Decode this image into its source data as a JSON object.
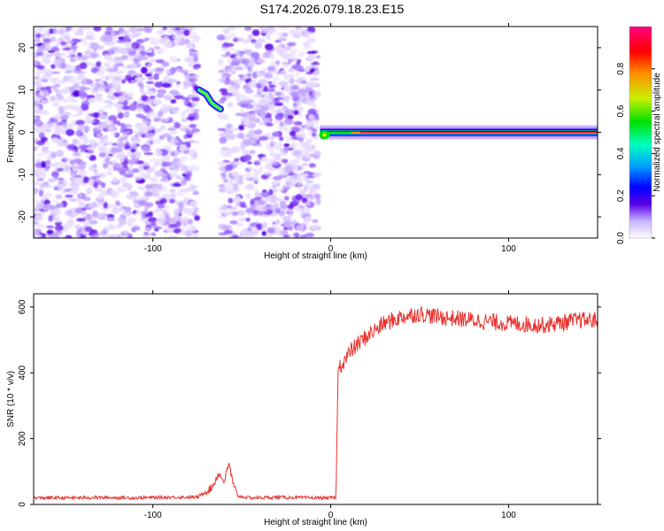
{
  "title": "S174.2026.079.18.23.E15",
  "chart_data": [
    {
      "type": "heatmap",
      "xlabel": "Height of straight line (km)",
      "ylabel": "Frequency (Hz)",
      "xlim": [
        -167,
        150
      ],
      "ylim": [
        -25,
        25
      ],
      "xticks": [
        -100,
        0,
        100
      ],
      "yticks": [
        -20,
        -10,
        0,
        10,
        20
      ],
      "colorbar": {
        "label": "Normalized spectral amplitude",
        "range": [
          0.0,
          1.0
        ],
        "ticks": [
          0.0,
          0.2,
          0.4,
          0.6,
          0.8
        ],
        "colors": [
          "#ffffff",
          "#a57bff",
          "#5a00e6",
          "#0000ff",
          "#00b4ff",
          "#00ffc0",
          "#00e000",
          "#c8f000",
          "#ff8c00",
          "#ff0000",
          "#ff0080"
        ]
      },
      "features": [
        {
          "name": "noise",
          "x_range": [
            -167,
            -7
          ],
          "y_range": [
            -25,
            25
          ],
          "amplitude": 0.1,
          "gap": [
            -75,
            -62
          ]
        },
        {
          "name": "blob",
          "points": [
            [
              -74,
              10
            ],
            [
              -70,
              9
            ],
            [
              -67,
              7
            ],
            [
              -64,
              6
            ],
            [
              -62,
              5.5
            ]
          ],
          "amplitude": 0.5
        },
        {
          "name": "ridge",
          "x_range": [
            -6,
            150
          ],
          "frequency": 0.0,
          "amplitude": 0.9
        }
      ]
    },
    {
      "type": "line",
      "xlabel": "Height of straight line (km)",
      "ylabel": "SNR (10 * v/v)",
      "xlim": [
        -167,
        150
      ],
      "ylim": [
        0,
        640
      ],
      "xticks": [
        -100,
        0,
        100
      ],
      "yticks": [
        0,
        200,
        400,
        600
      ],
      "color": "#e8312d",
      "x": [
        -167,
        -150,
        -130,
        -110,
        -90,
        -75,
        -67,
        -63,
        -60,
        -57,
        -55,
        -52,
        -45,
        -30,
        -10,
        3,
        4,
        5,
        8,
        12,
        20,
        30,
        40,
        50,
        60,
        80,
        100,
        120,
        140,
        150
      ],
      "y": [
        20,
        20,
        21,
        20,
        22,
        22,
        50,
        95,
        70,
        125,
        60,
        25,
        20,
        22,
        20,
        20,
        390,
        420,
        440,
        470,
        510,
        550,
        570,
        580,
        570,
        560,
        550,
        545,
        560,
        560
      ]
    }
  ]
}
